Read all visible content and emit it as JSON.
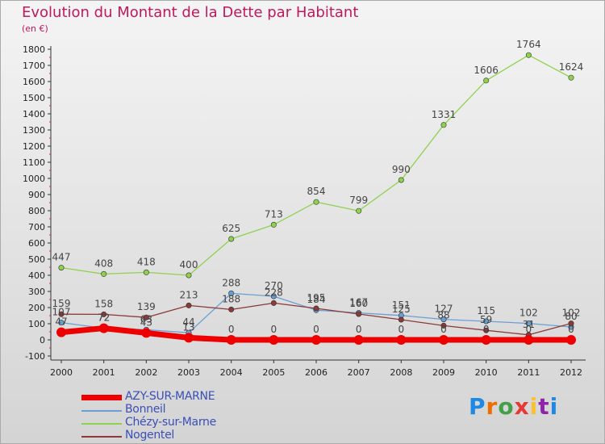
{
  "title": "Evolution du Montant de la Dette par Habitant",
  "subtitle": "(en €)",
  "chart_data": {
    "type": "line",
    "x": [
      "2000",
      "2001",
      "2002",
      "2003",
      "2004",
      "2005",
      "2006",
      "2007",
      "2008",
      "2009",
      "2010",
      "2011",
      "2012"
    ],
    "ylim": [
      -100,
      1800
    ],
    "yticks": [
      -100,
      0,
      100,
      200,
      300,
      400,
      500,
      600,
      700,
      800,
      900,
      1000,
      1100,
      1200,
      1300,
      1400,
      1500,
      1600,
      1700,
      1800
    ],
    "grid": false,
    "legend_position": "bottom-left",
    "series": [
      {
        "name": "AZY-SUR-MARNE",
        "color": "#ee0000",
        "values": [
          47,
          72,
          43,
          13,
          0,
          0,
          0,
          0,
          0,
          0,
          0,
          0,
          0
        ],
        "labels": [
          "47",
          "72",
          "43",
          "13",
          "0",
          "0",
          "0",
          "0",
          "0",
          "0",
          "0",
          "0",
          "0"
        ]
      },
      {
        "name": "Bonneil",
        "color": "#6a9fd4",
        "values": [
          107,
          72,
          63,
          44,
          288,
          270,
          184,
          167,
          151,
          127,
          115,
          102,
          80
        ],
        "labels": [
          "107",
          "72",
          "63",
          "44",
          "288",
          "270",
          "184",
          "167",
          "151",
          "127",
          "115",
          "102",
          "80"
        ]
      },
      {
        "name": "Chézy-sur-Marne",
        "color": "#8fd14f",
        "values": [
          447,
          408,
          418,
          400,
          625,
          713,
          854,
          799,
          990,
          1331,
          1606,
          1764,
          1624
        ],
        "labels": [
          "447",
          "408",
          "418",
          "400",
          "625",
          "713",
          "854",
          "799",
          "990",
          "1331",
          "1606",
          "1764",
          "1624"
        ]
      },
      {
        "name": "Nogentel",
        "color": "#8b3a3a",
        "values": [
          159,
          158,
          139,
          213,
          188,
          228,
          195,
          160,
          125,
          88,
          59,
          31,
          102
        ],
        "labels": [
          "159",
          "158",
          "139",
          "213",
          "188",
          "228",
          "195",
          "160",
          "125",
          "88",
          "59",
          "31",
          "102"
        ]
      }
    ]
  },
  "legend": [
    {
      "label": "AZY-SUR-MARNE"
    },
    {
      "label": "Bonneil"
    },
    {
      "label": "Chézy-sur-Marne"
    },
    {
      "label": "Nogentel"
    }
  ],
  "logo": {
    "text": "Proxiti",
    "letters": [
      "P",
      "r",
      "o",
      "x",
      "i",
      "t",
      "i"
    ],
    "colors": [
      "#1e88e5",
      "#ef6c00",
      "#43a047",
      "#e53935",
      "#fbc02d",
      "#8e24aa",
      "#1e88e5"
    ]
  }
}
